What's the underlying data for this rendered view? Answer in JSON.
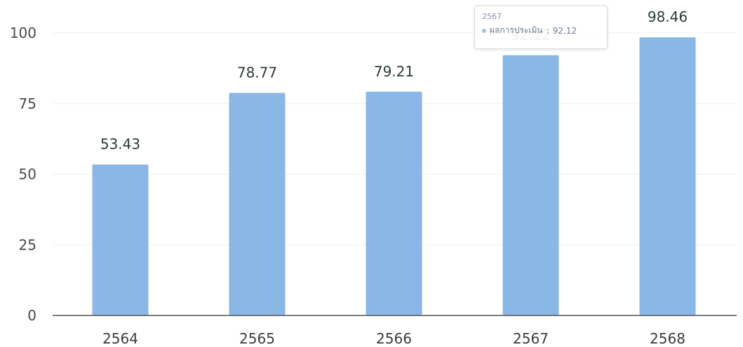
{
  "chart_data": {
    "type": "bar",
    "categories": [
      "2564",
      "2565",
      "2566",
      "2567",
      "2568"
    ],
    "series": [
      {
        "name": "ผลการประเมิน",
        "values": [
          53.43,
          78.77,
          79.21,
          92.12,
          98.46
        ]
      }
    ],
    "data_labels": [
      "53.43",
      "78.77",
      "79.21",
      "92.12",
      "98.46"
    ],
    "ylim": [
      0,
      100
    ],
    "yticks": [
      0,
      25,
      50,
      75,
      100
    ],
    "xlabel": "",
    "ylabel": "",
    "grid": true,
    "bar_color": "#8ab7e6"
  },
  "tooltip": {
    "title": "2567",
    "series_name": "ผลการประเมิน",
    "value": "92.12",
    "dot_color": "#9ec3ea"
  }
}
